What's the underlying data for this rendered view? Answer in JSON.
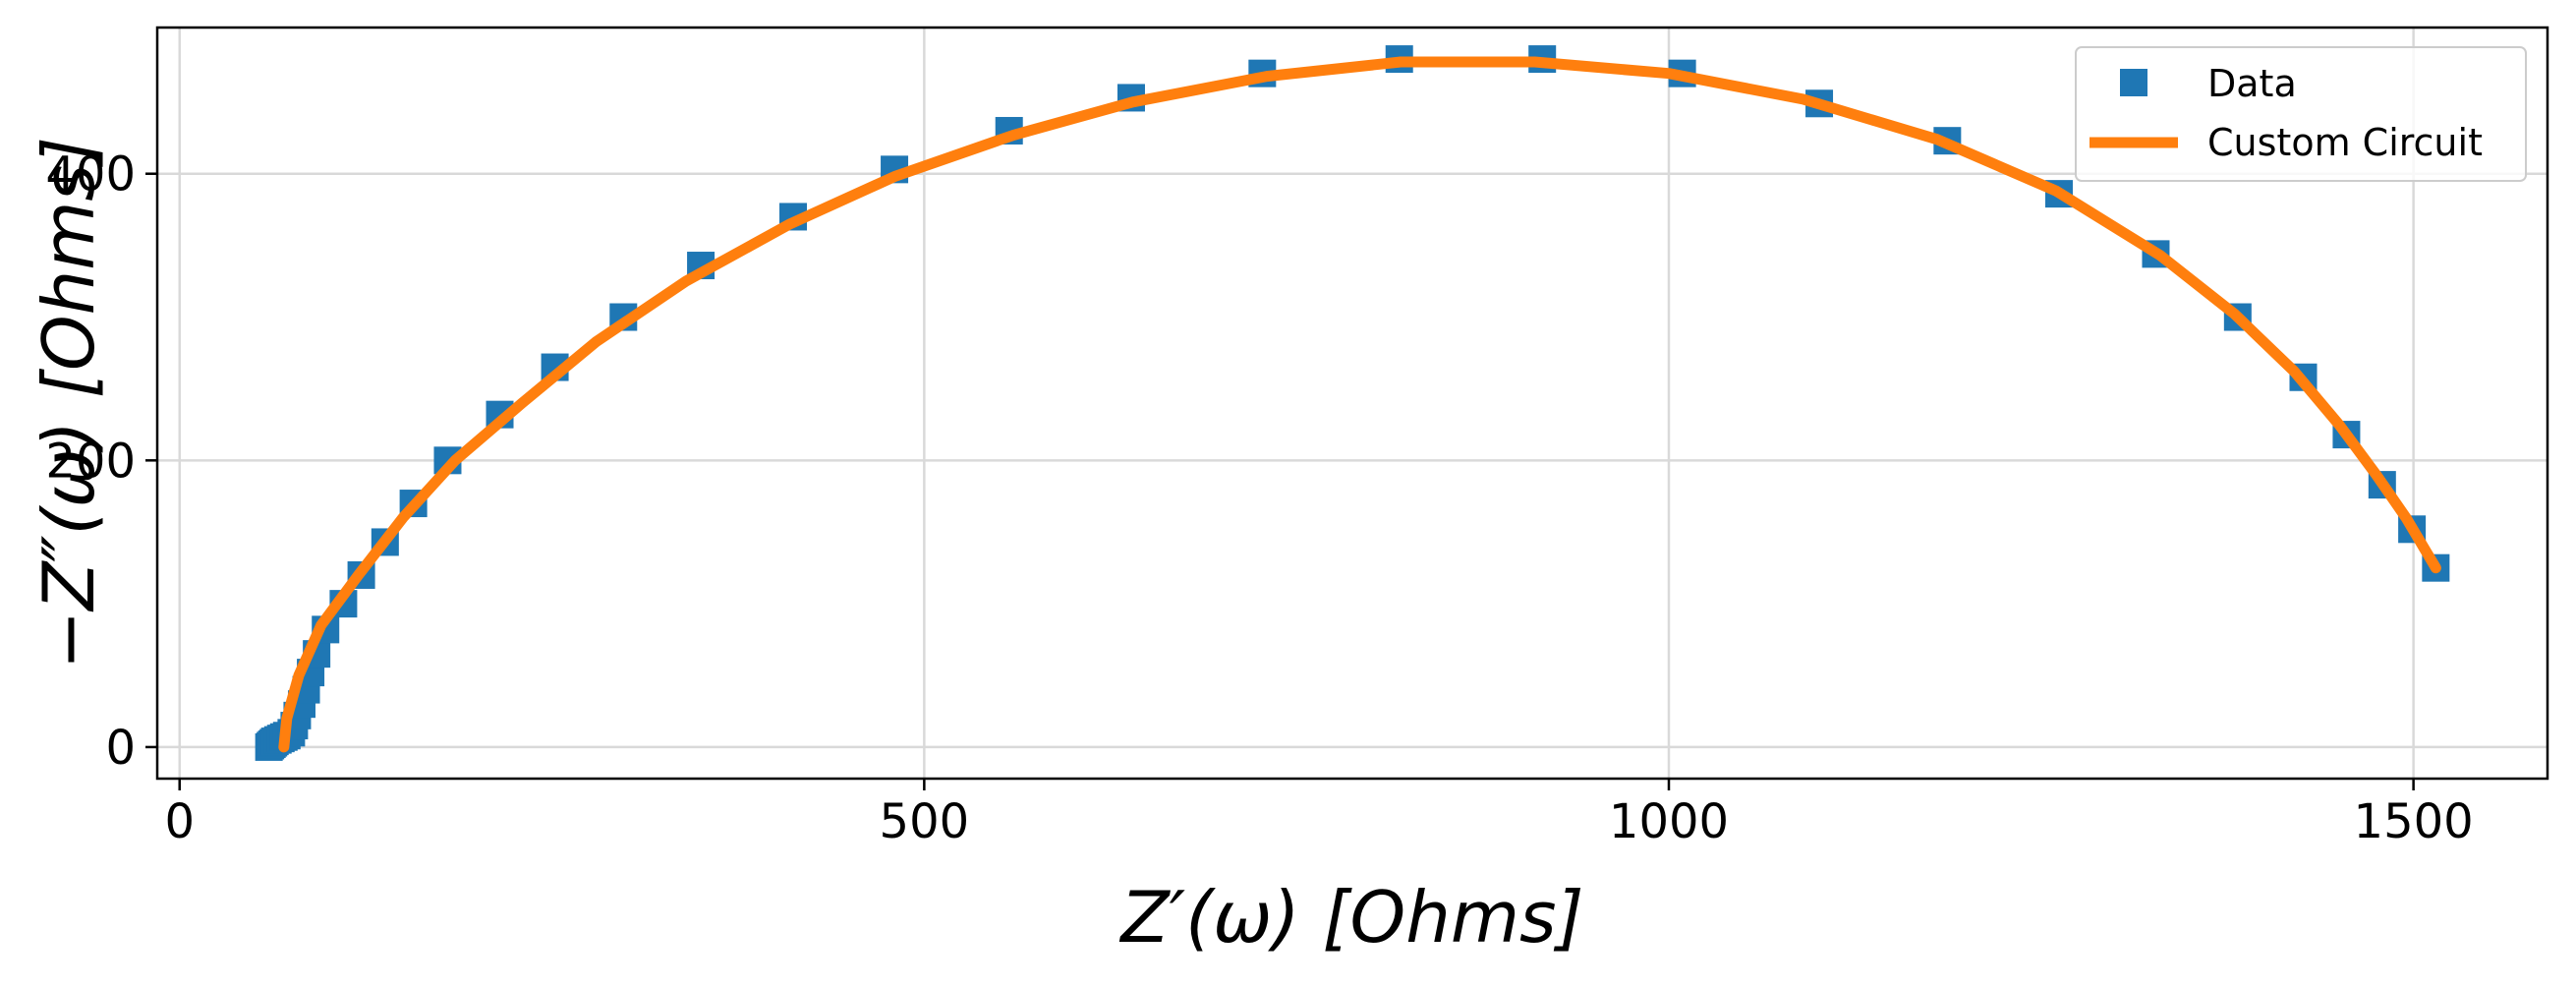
{
  "chart_data": {
    "type": "scatter",
    "xlabel": "Z′(ω) [Ohms]",
    "ylabel": "−Z″(ω) [Ohms]",
    "xlim": [
      -15,
      1590
    ],
    "ylim": [
      -22,
      502
    ],
    "xticks": [
      0,
      500,
      1000,
      1500
    ],
    "yticks": [
      0,
      200,
      400
    ],
    "grid": true,
    "legend_position": "top-right",
    "series": [
      {
        "name": "Data",
        "kind": "markers",
        "marker": "square",
        "color": "#1f77b4",
        "points": [
          [
            60,
            0
          ],
          [
            61,
            1
          ],
          [
            62,
            2
          ],
          [
            63,
            3
          ],
          [
            64,
            4
          ],
          [
            66,
            5
          ],
          [
            68,
            6
          ],
          [
            70,
            7
          ],
          [
            72,
            8
          ],
          [
            75,
            10
          ],
          [
            77,
            15
          ],
          [
            79,
            22
          ],
          [
            82,
            30
          ],
          [
            85,
            40
          ],
          [
            88,
            52
          ],
          [
            92,
            65
          ],
          [
            98,
            82
          ],
          [
            110,
            100
          ],
          [
            122,
            120
          ],
          [
            138,
            143
          ],
          [
            157,
            170
          ],
          [
            180,
            200
          ],
          [
            215,
            232
          ],
          [
            252,
            265
          ],
          [
            298,
            300
          ],
          [
            350,
            336
          ],
          [
            412,
            370
          ],
          [
            480,
            403
          ],
          [
            557,
            430
          ],
          [
            639,
            453
          ],
          [
            727,
            470
          ],
          [
            819,
            480
          ],
          [
            915,
            480
          ],
          [
            1009,
            470
          ],
          [
            1101,
            449
          ],
          [
            1187,
            423
          ],
          [
            1262,
            386
          ],
          [
            1327,
            344
          ],
          [
            1382,
            300
          ],
          [
            1426,
            258
          ],
          [
            1455,
            218
          ],
          [
            1479,
            183
          ],
          [
            1499,
            152
          ],
          [
            1515,
            125
          ]
        ]
      },
      {
        "name": "Custom Circuit",
        "kind": "line",
        "color": "#ff7f0e",
        "points": [
          [
            70,
            0
          ],
          [
            72,
            20
          ],
          [
            80,
            50
          ],
          [
            95,
            85
          ],
          [
            120,
            120
          ],
          [
            150,
            160
          ],
          [
            185,
            200
          ],
          [
            230,
            240
          ],
          [
            280,
            283
          ],
          [
            340,
            325
          ],
          [
            410,
            365
          ],
          [
            480,
            398
          ],
          [
            560,
            427
          ],
          [
            640,
            450
          ],
          [
            730,
            468
          ],
          [
            820,
            478
          ],
          [
            910,
            478
          ],
          [
            1000,
            470
          ],
          [
            1090,
            452
          ],
          [
            1180,
            424
          ],
          [
            1260,
            388
          ],
          [
            1330,
            343
          ],
          [
            1380,
            302
          ],
          [
            1420,
            262
          ],
          [
            1450,
            225
          ],
          [
            1475,
            190
          ],
          [
            1495,
            160
          ],
          [
            1515,
            125
          ]
        ]
      }
    ]
  }
}
